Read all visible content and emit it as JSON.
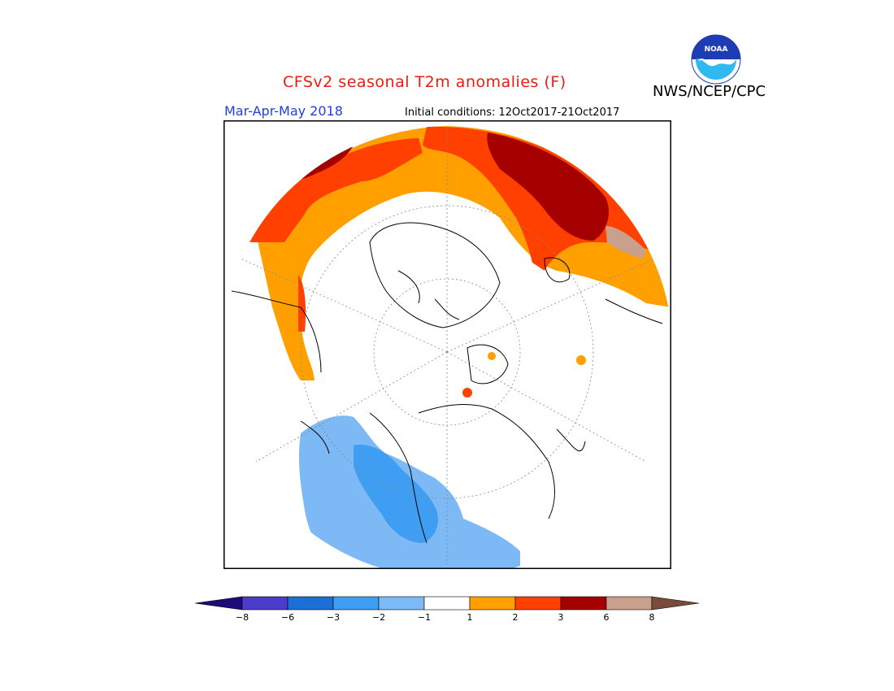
{
  "header": {
    "title": "CFSv2 seasonal T2m anomalies (F)",
    "agency": "NWS/NCEP/CPC",
    "season": "Mar-Apr-May 2018",
    "initial_conditions": "Initial conditions: 12Oct2017-21Oct2017",
    "logo_text": "NOAA"
  },
  "map": {
    "projection": "north-polar-stereographic",
    "variable": "2m temperature anomaly",
    "units": "F"
  },
  "legend": {
    "bins": [
      {
        "range": "< -8",
        "color": "#1e0a78"
      },
      {
        "range": "-8 to -6",
        "color": "#4b3ccc"
      },
      {
        "range": "-6 to -3",
        "color": "#1e6ed8"
      },
      {
        "range": "-3 to -2",
        "color": "#3f9ef2"
      },
      {
        "range": "-2 to -1",
        "color": "#7db9f5"
      },
      {
        "range": "-1 to 1",
        "color": "#ffffff"
      },
      {
        "range": "1 to 2",
        "color": "#ffa000"
      },
      {
        "range": "2 to 3",
        "color": "#ff4000"
      },
      {
        "range": "3 to 6",
        "color": "#a50000"
      },
      {
        "range": "6 to 8",
        "color": "#c8a08c"
      },
      {
        "range": "> 8",
        "color": "#7a4a3a"
      }
    ],
    "tick_labels": [
      "−8",
      "−6",
      "−3",
      "−2",
      "−1",
      "1",
      "2",
      "3",
      "6",
      "8"
    ]
  }
}
